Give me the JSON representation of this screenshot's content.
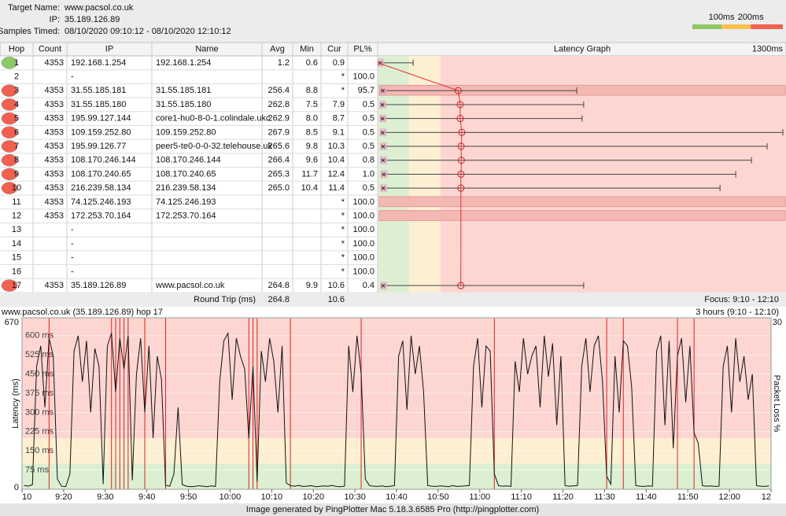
{
  "header": {
    "target_label": "Target Name:",
    "target": "www.pacsol.co.uk",
    "ip_label": "IP:",
    "ip": "35.189.126.89",
    "samples_label": "Samples Timed:",
    "samples": "08/10/2020 09:10:12 - 08/10/2020 12:10:12"
  },
  "legend": {
    "thresholds": [
      {
        "value": 100,
        "label": "100ms"
      },
      {
        "value": 200,
        "label": "200ms"
      }
    ],
    "colors": [
      "#8cc866",
      "#f8c04c",
      "#f26050"
    ],
    "zone_colors": [
      "#dcefd2",
      "#fdf0d2",
      "#fdd6d2"
    ]
  },
  "table": {
    "columns": [
      "Hop",
      "Count",
      "IP",
      "Name",
      "Avg",
      "Min",
      "Cur",
      "PL%"
    ],
    "graph_title": "Latency Graph",
    "graph_scale": {
      "value": 1300,
      "label": "1300ms"
    },
    "rows": [
      [
        "1",
        "4353",
        "192.168.1.254",
        "192.168.1.254",
        "1.2",
        "0.6",
        "0.9",
        null
      ],
      [
        "2",
        null,
        "-",
        null,
        null,
        null,
        "*",
        "100.0"
      ],
      [
        "3",
        "4353",
        "31.55.185.181",
        "31.55.185.181",
        "256.4",
        "8.8",
        "*",
        "95.7"
      ],
      [
        "4",
        "4353",
        "31.55.185.180",
        "31.55.185.180",
        "262.8",
        "7.5",
        "7.9",
        "0.5"
      ],
      [
        "5",
        "4353",
        "195.99.127.144",
        "core1-hu0-8-0-1.colindale.ukc",
        "262.9",
        "8.0",
        "8.7",
        "0.5"
      ],
      [
        "6",
        "4353",
        "109.159.252.80",
        "109.159.252.80",
        "267.9",
        "8.5",
        "9.1",
        "0.5"
      ],
      [
        "7",
        "4353",
        "195.99.126.77",
        "peer5-te0-0-0-32.telehouse.uk",
        "265.6",
        "9.8",
        "10.3",
        "0.5"
      ],
      [
        "8",
        "4353",
        "108.170.246.144",
        "108.170.246.144",
        "266.4",
        "9.6",
        "10.4",
        "0.8"
      ],
      [
        "9",
        "4353",
        "108.170.240.65",
        "108.170.240.65",
        "265.3",
        "11.7",
        "12.4",
        "1.0"
      ],
      [
        "10",
        "4353",
        "216.239.58.134",
        "216.239.58.134",
        "265.0",
        "10.4",
        "11.4",
        "0.5"
      ],
      [
        "11",
        "4353",
        "74.125.246.193",
        "74.125.246.193",
        null,
        null,
        "*",
        "100.0"
      ],
      [
        "12",
        "4353",
        "172.253.70.164",
        "172.253.70.164",
        null,
        null,
        "*",
        "100.0"
      ],
      [
        "13",
        null,
        "-",
        null,
        null,
        null,
        "*",
        "100.0"
      ],
      [
        "14",
        null,
        "-",
        null,
        null,
        null,
        "*",
        "100.0"
      ],
      [
        "15",
        null,
        "-",
        null,
        null,
        null,
        "*",
        "100.0"
      ],
      [
        "16",
        null,
        "-",
        null,
        null,
        null,
        "*",
        "100.0"
      ],
      [
        "17",
        "4353",
        "35.189.126.89",
        "www.pacsol.co.uk",
        "264.8",
        "9.9",
        "10.6",
        "0.4"
      ]
    ],
    "max": [
      113,
      null,
      634,
      656,
      651,
      1290,
      1240,
      1190,
      1140,
      1090,
      null,
      null,
      null,
      null,
      null,
      null,
      656
    ],
    "footer": {
      "label": "Round Trip (ms)",
      "avg": "264.8",
      "cur": "10.6",
      "focus": "Focus: 9:10 - 12:10"
    }
  },
  "timeline": {
    "title": "www.pacsol.co.uk (35.189.126.89) hop 17",
    "range": "3 hours (9:10 - 12:10)",
    "ylabel": "Latency (ms)",
    "y2label": "Packet Loss %",
    "ylim": [
      0,
      670
    ],
    "y2lim": [
      0,
      30
    ],
    "yticks": [
      {
        "value": 75,
        "label": "75 ms"
      },
      {
        "value": 150,
        "label": "150 ms"
      },
      {
        "value": 225,
        "label": "225 ms"
      },
      {
        "value": 300,
        "label": "300 ms"
      },
      {
        "value": 375,
        "label": "375 ms"
      },
      {
        "value": 450,
        "label": "450 ms"
      },
      {
        "value": 525,
        "label": "525 ms"
      },
      {
        "value": 600,
        "label": "600 ms"
      }
    ],
    "xticks": [
      "10",
      "9:20",
      "9:30",
      "9:40",
      "9:50",
      "10:00",
      "10:10",
      "10:20",
      "10:30",
      "10:40",
      "10:50",
      "11:00",
      "11:10",
      "11:20",
      "11:30",
      "11:40",
      "11:50",
      "12:00",
      "12"
    ],
    "latency": [
      15,
      12,
      18,
      480,
      560,
      320,
      590,
      520,
      40,
      12,
      10,
      60,
      540,
      600,
      420,
      580,
      300,
      550,
      480,
      20,
      560,
      610,
      380,
      590,
      470,
      600,
      35,
      450,
      590,
      300,
      560,
      200,
      520,
      430,
      15,
      12,
      60,
      320,
      18,
      12,
      10,
      11,
      14,
      12,
      10,
      13,
      11,
      420,
      580,
      610,
      350,
      590,
      520,
      470,
      200,
      480,
      30,
      540,
      420,
      590,
      500,
      300,
      560,
      25,
      14,
      12,
      15,
      11,
      12,
      14,
      10,
      11,
      13,
      12,
      15,
      11,
      10,
      12,
      560,
      380,
      600,
      450,
      40,
      14,
      12,
      11,
      13,
      10,
      12,
      14,
      520,
      580,
      310,
      600,
      450,
      560,
      380,
      14,
      12,
      11,
      13,
      12,
      10,
      14,
      11,
      12,
      13,
      15,
      480,
      590,
      320,
      560,
      540,
      60,
      14,
      12,
      13,
      11,
      500,
      380,
      590,
      450,
      520,
      560,
      320,
      600,
      440,
      570,
      250,
      520,
      14,
      12,
      13,
      15,
      480,
      590,
      380,
      560,
      600,
      420,
      50,
      20,
      520,
      300,
      580,
      560,
      400,
      14,
      12,
      11,
      13,
      12,
      540,
      600,
      250,
      580,
      160,
      520,
      590,
      340,
      560,
      220,
      180,
      14,
      12,
      13,
      11,
      12,
      480,
      560,
      300,
      590,
      420,
      520,
      350,
      450,
      14,
      12,
      11,
      13
    ],
    "packet_loss": [
      0,
      0,
      0,
      0,
      0,
      0,
      30,
      0,
      0,
      0,
      0,
      0,
      0,
      0,
      0,
      0,
      0,
      0,
      0,
      0,
      0,
      30,
      30,
      30,
      30,
      30,
      0,
      0,
      0,
      30,
      0,
      0,
      0,
      0,
      30,
      0,
      0,
      0,
      0,
      0,
      0,
      0,
      0,
      0,
      0,
      0,
      0,
      0,
      0,
      0,
      0,
      0,
      0,
      0,
      30,
      30,
      30,
      0,
      0,
      0,
      0,
      0,
      0,
      0,
      30,
      0,
      0,
      0,
      0,
      0,
      0,
      0,
      0,
      0,
      0,
      0,
      0,
      0,
      0,
      0,
      0,
      30,
      0,
      0,
      0,
      0,
      0,
      0,
      0,
      0,
      0,
      0,
      0,
      0,
      0,
      0,
      0,
      0,
      0,
      0,
      0,
      0,
      0,
      0,
      0,
      0,
      0,
      0,
      0,
      0,
      0,
      0,
      0,
      30,
      0,
      0,
      0,
      0,
      0,
      0,
      0,
      0,
      0,
      0,
      0,
      0,
      0,
      0,
      0,
      0,
      0,
      0,
      0,
      0,
      0,
      0,
      0,
      0,
      0,
      0,
      30,
      0,
      0,
      0,
      30,
      0,
      0,
      0,
      0,
      0,
      0,
      0,
      0,
      0,
      0,
      0,
      0,
      30,
      0,
      0,
      0,
      30,
      0,
      0,
      0,
      0,
      0,
      0,
      0,
      0,
      0,
      0,
      0,
      0,
      0,
      0,
      0,
      0,
      0,
      0
    ]
  },
  "credits": "Image generated by PingPlotter Mac 5.18.3.6585 Pro (http://pingplotter.com)"
}
